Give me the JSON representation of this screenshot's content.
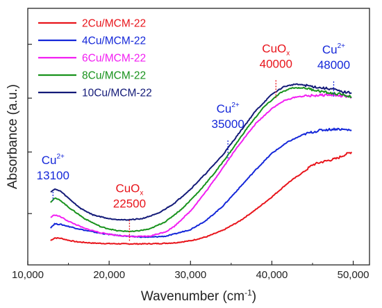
{
  "chart_data": {
    "type": "line",
    "xlabel": "Wavenumber (cm",
    "xlabel_sup": "-1",
    "xlabel_suffix": ")",
    "ylabel": "Absorbance (a.u.)",
    "xlim": [
      10000,
      52000
    ],
    "ylim": [
      0,
      100
    ],
    "x_ticks": [
      10000,
      20000,
      30000,
      40000,
      50000
    ],
    "x_tick_labels": [
      "10,000",
      "20,000",
      "30,000",
      "40,000",
      "50,000"
    ],
    "y_ticks": [
      20,
      44,
      65,
      86
    ],
    "y_tick_labels_shown": false,
    "legend_position": "top-left",
    "series": [
      {
        "name": "2Cu/MCM-22",
        "color": "#e8141b",
        "points": [
          [
            12800,
            9.5
          ],
          [
            13300,
            10.5
          ],
          [
            14000,
            10.4
          ],
          [
            15000,
            9.6
          ],
          [
            16000,
            9.0
          ],
          [
            18000,
            8.5
          ],
          [
            20000,
            8.3
          ],
          [
            22000,
            8.2
          ],
          [
            24000,
            8.2
          ],
          [
            26000,
            8.3
          ],
          [
            28000,
            8.6
          ],
          [
            30000,
            9.4
          ],
          [
            32000,
            11.0
          ],
          [
            34000,
            13.5
          ],
          [
            36000,
            17.0
          ],
          [
            38000,
            21.5
          ],
          [
            40000,
            26.5
          ],
          [
            42000,
            32.0
          ],
          [
            44000,
            36.5
          ],
          [
            45000,
            39.0
          ],
          [
            46000,
            40.0
          ],
          [
            48000,
            41.5
          ],
          [
            49000,
            43.0
          ],
          [
            49800,
            44.0
          ]
        ]
      },
      {
        "name": "4Cu/MCM-22",
        "color": "#1427d9",
        "points": [
          [
            12800,
            14.5
          ],
          [
            13300,
            16.0
          ],
          [
            14000,
            15.8
          ],
          [
            15000,
            15.0
          ],
          [
            17000,
            13.5
          ],
          [
            19000,
            12.3
          ],
          [
            21000,
            11.5
          ],
          [
            23000,
            11.0
          ],
          [
            25000,
            10.8
          ],
          [
            27000,
            11.2
          ],
          [
            28000,
            12.0
          ],
          [
            30000,
            13.8
          ],
          [
            32000,
            17.5
          ],
          [
            34000,
            23.0
          ],
          [
            36000,
            30.0
          ],
          [
            38000,
            37.0
          ],
          [
            40000,
            43.5
          ],
          [
            42000,
            48.0
          ],
          [
            44000,
            51.0
          ],
          [
            46000,
            52.5
          ],
          [
            48000,
            53.0
          ],
          [
            49800,
            52.5
          ]
        ]
      },
      {
        "name": "6Cu/MCM-22",
        "color": "#f21ef2",
        "points": [
          [
            12800,
            18.5
          ],
          [
            13300,
            19.5
          ],
          [
            14000,
            18.8
          ],
          [
            15000,
            17.0
          ],
          [
            17000,
            14.2
          ],
          [
            19000,
            12.5
          ],
          [
            21000,
            11.5
          ],
          [
            23000,
            11.0
          ],
          [
            25000,
            11.2
          ],
          [
            27000,
            13.0
          ],
          [
            28000,
            15.0
          ],
          [
            30000,
            21.0
          ],
          [
            32000,
            29.0
          ],
          [
            34000,
            38.0
          ],
          [
            36000,
            47.0
          ],
          [
            38000,
            55.0
          ],
          [
            40000,
            61.0
          ],
          [
            41500,
            64.0
          ],
          [
            43000,
            65.5
          ],
          [
            45000,
            66.0
          ],
          [
            47000,
            66.3
          ],
          [
            48000,
            66.0
          ],
          [
            49000,
            65.7
          ],
          [
            49800,
            65.3
          ]
        ]
      },
      {
        "name": "8Cu/MCM-22",
        "color": "#18921c",
        "points": [
          [
            12800,
            24.5
          ],
          [
            13300,
            26.0
          ],
          [
            14000,
            25.2
          ],
          [
            15000,
            22.5
          ],
          [
            17000,
            18.0
          ],
          [
            19000,
            14.8
          ],
          [
            21000,
            13.3
          ],
          [
            23000,
            13.0
          ],
          [
            25000,
            14.0
          ],
          [
            27000,
            17.0
          ],
          [
            29000,
            22.0
          ],
          [
            31000,
            28.5
          ],
          [
            33000,
            36.0
          ],
          [
            35000,
            44.5
          ],
          [
            37000,
            53.5
          ],
          [
            39000,
            61.5
          ],
          [
            41000,
            67.0
          ],
          [
            42500,
            69.0
          ],
          [
            44000,
            69.0
          ],
          [
            45500,
            68.0
          ],
          [
            47000,
            67.0
          ],
          [
            48500,
            66.5
          ],
          [
            49800,
            65.5
          ]
        ]
      },
      {
        "name": "10Cu/MCM-22",
        "color": "#131a78",
        "points": [
          [
            12800,
            28.5
          ],
          [
            13300,
            29.5
          ],
          [
            14000,
            28.8
          ],
          [
            15000,
            26.0
          ],
          [
            16500,
            22.0
          ],
          [
            18000,
            19.5
          ],
          [
            20000,
            18.0
          ],
          [
            22000,
            17.5
          ],
          [
            24000,
            18.0
          ],
          [
            26000,
            20.0
          ],
          [
            28000,
            24.0
          ],
          [
            30000,
            29.5
          ],
          [
            32000,
            36.0
          ],
          [
            34000,
            43.0
          ],
          [
            36000,
            51.5
          ],
          [
            38000,
            60.0
          ],
          [
            40000,
            66.5
          ],
          [
            41500,
            69.5
          ],
          [
            43000,
            70.5
          ],
          [
            44500,
            69.8
          ],
          [
            46000,
            69.0
          ],
          [
            47500,
            68.5
          ],
          [
            48500,
            67.5
          ],
          [
            49800,
            67.0
          ]
        ]
      }
    ],
    "annotations": [
      {
        "text": "Cu",
        "sup": "2+",
        "value": "13100",
        "color": "#1427d9",
        "x": 13100,
        "line_from": 28.5,
        "line_to": 25.0
      },
      {
        "text": "CuO",
        "sub": "x",
        "value": "22500",
        "color": "#e8141b",
        "x": 22500,
        "line_from": 17.5,
        "line_to": 9.0
      },
      {
        "text": "Cu",
        "sup": "2+",
        "value": "35000",
        "color": "#1427d9",
        "x": 34600,
        "line_from": 48.5,
        "line_to": 41.0
      },
      {
        "text": "CuO",
        "sub": "x",
        "value": "40000",
        "color": "#e8141b",
        "x": 40500,
        "line_from": 72.0,
        "line_to": 65.0
      },
      {
        "text": "Cu",
        "sup": "2+",
        "value": "48000",
        "color": "#1427d9",
        "x": 47600,
        "line_from": 71.5,
        "line_to": 65.5
      }
    ]
  }
}
